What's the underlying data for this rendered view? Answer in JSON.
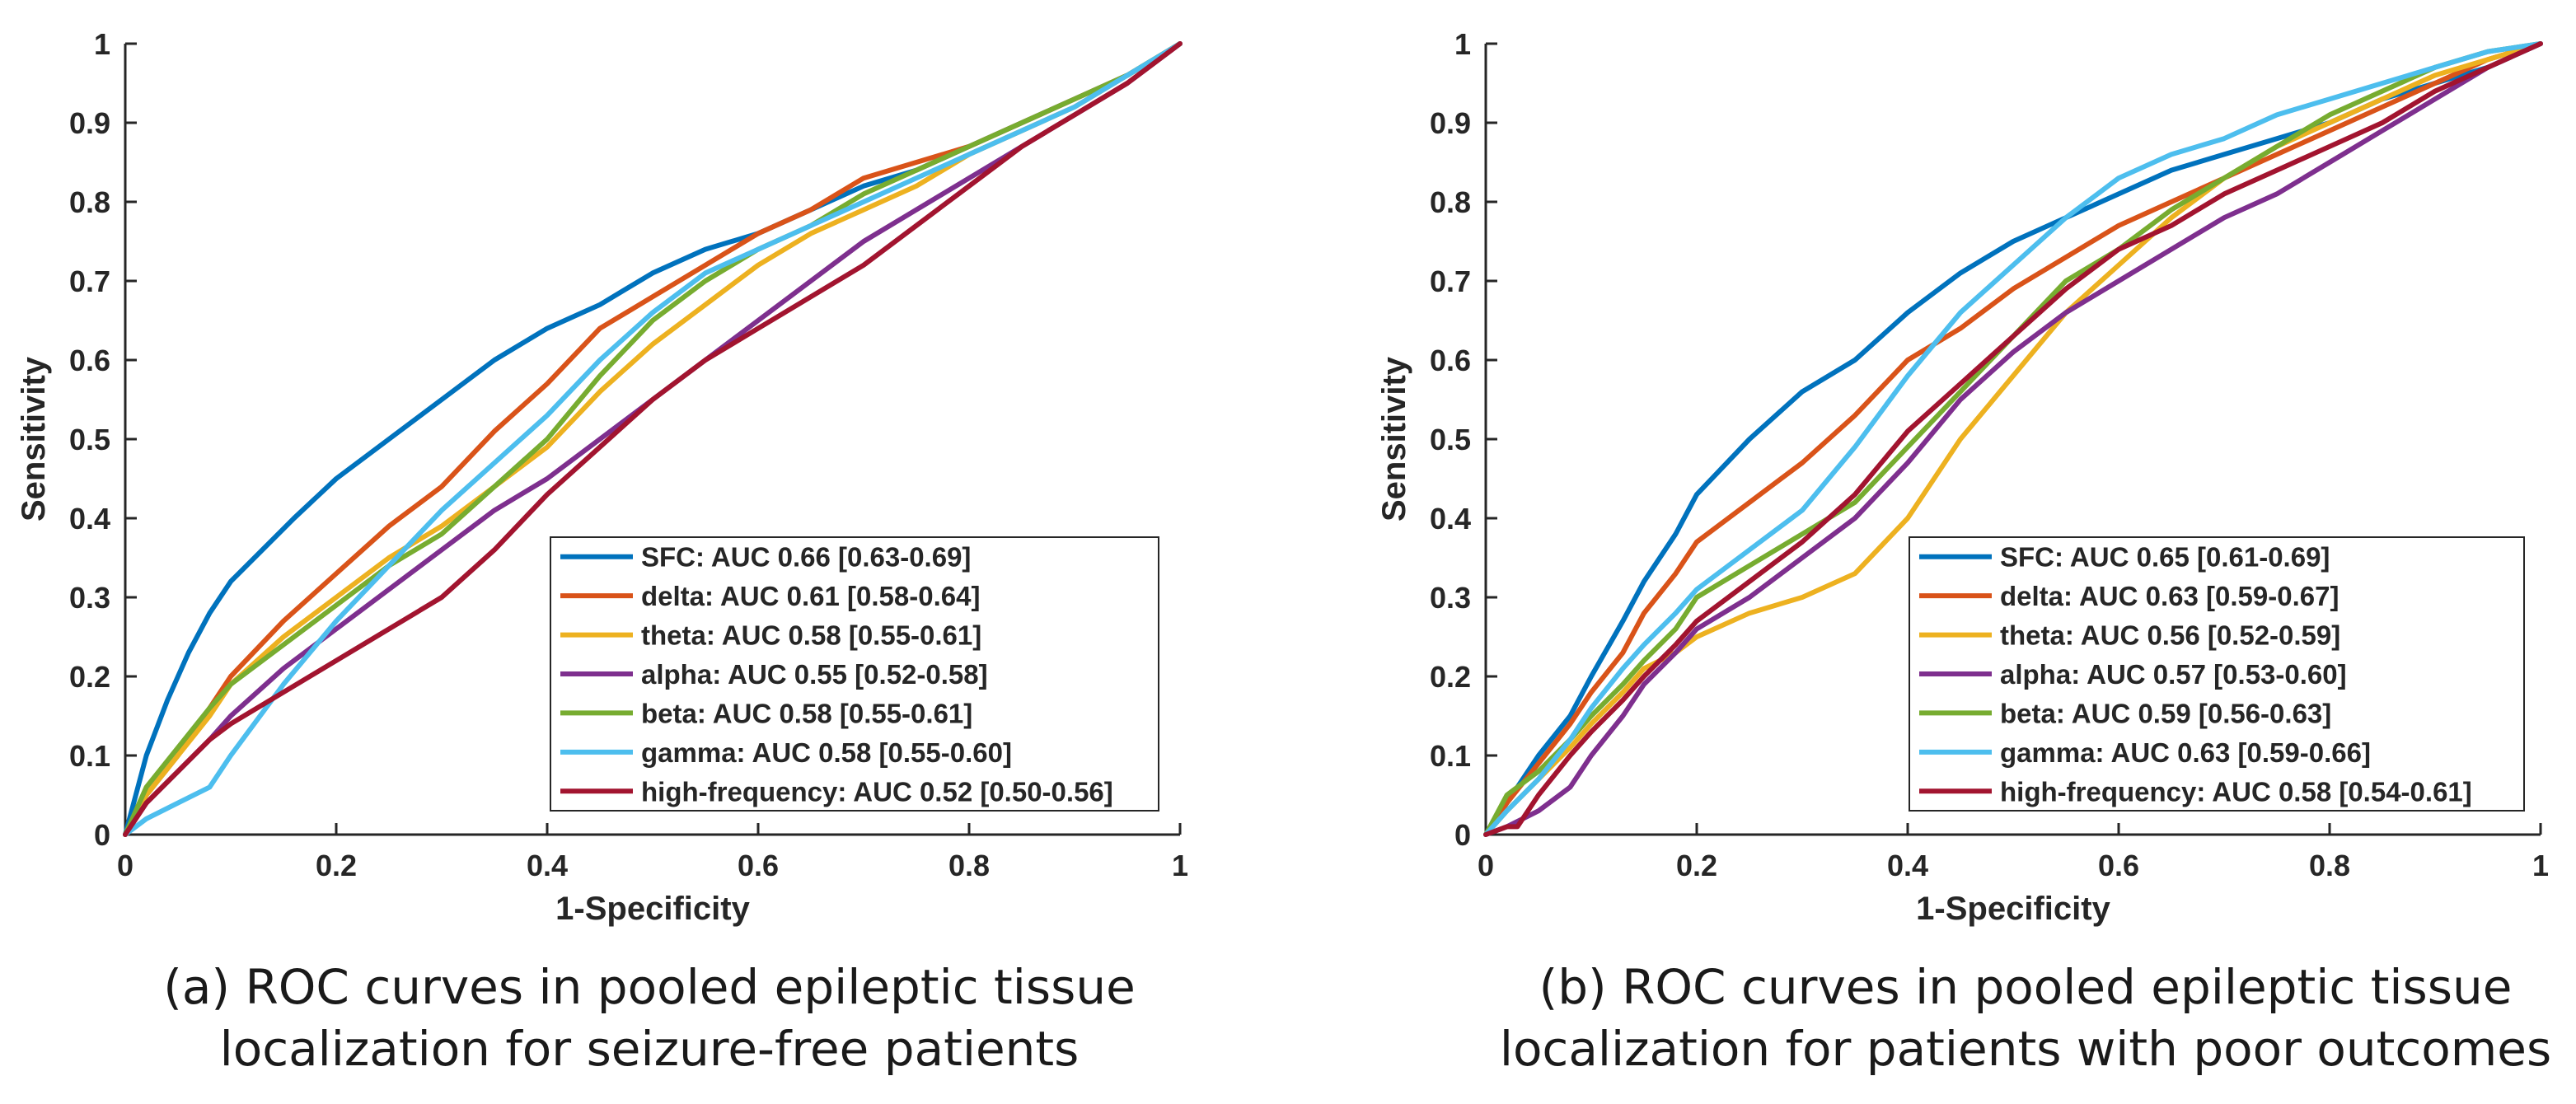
{
  "colors": {
    "SFC": "#0072BD",
    "delta": "#D95319",
    "theta": "#EDB120",
    "alpha": "#7E2F8E",
    "beta": "#77AC30",
    "gamma": "#4DBEEE",
    "high-frequency": "#A2142F"
  },
  "chart_data": [
    {
      "type": "line",
      "xlabel": "1-Specificity",
      "ylabel": "Sensitivity",
      "xlim": [
        0,
        1
      ],
      "ylim": [
        0,
        1
      ],
      "x_ticks": [
        "0",
        "0.2",
        "0.4",
        "0.6",
        "0.8",
        "1"
      ],
      "y_ticks": [
        "0",
        "0.1",
        "0.2",
        "0.3",
        "0.4",
        "0.5",
        "0.6",
        "0.7",
        "0.8",
        "0.9",
        "1"
      ],
      "caption": [
        "(a) ROC curves in pooled epileptic tissue",
        "localization for seizure-free patients"
      ],
      "legend_position": "bottom-right",
      "series": [
        {
          "name": "SFC",
          "legend": "SFC: AUC 0.66 [0.63-0.69]",
          "x": [
            0,
            0.01,
            0.02,
            0.04,
            0.06,
            0.08,
            0.1,
            0.13,
            0.16,
            0.2,
            0.25,
            0.3,
            0.35,
            0.4,
            0.45,
            0.5,
            0.55,
            0.6,
            0.65,
            0.7,
            0.75,
            0.8,
            0.85,
            0.9,
            0.95,
            1
          ],
          "y": [
            0,
            0.05,
            0.1,
            0.17,
            0.23,
            0.28,
            0.32,
            0.36,
            0.4,
            0.45,
            0.5,
            0.55,
            0.6,
            0.64,
            0.67,
            0.71,
            0.74,
            0.76,
            0.79,
            0.82,
            0.84,
            0.87,
            0.9,
            0.93,
            0.96,
            1
          ]
        },
        {
          "name": "delta",
          "legend": "delta: AUC 0.61 [0.58-0.64]",
          "x": [
            0,
            0.02,
            0.05,
            0.08,
            0.1,
            0.15,
            0.2,
            0.25,
            0.3,
            0.35,
            0.4,
            0.45,
            0.5,
            0.55,
            0.6,
            0.65,
            0.7,
            0.75,
            0.8,
            0.85,
            0.9,
            0.95,
            1
          ],
          "y": [
            0,
            0.05,
            0.1,
            0.16,
            0.2,
            0.27,
            0.33,
            0.39,
            0.44,
            0.51,
            0.57,
            0.64,
            0.68,
            0.72,
            0.76,
            0.79,
            0.83,
            0.85,
            0.87,
            0.9,
            0.93,
            0.96,
            1
          ]
        },
        {
          "name": "theta",
          "legend": "theta: AUC 0.58 [0.55-0.61]",
          "x": [
            0,
            0.02,
            0.05,
            0.08,
            0.1,
            0.15,
            0.2,
            0.25,
            0.3,
            0.35,
            0.4,
            0.45,
            0.5,
            0.55,
            0.6,
            0.65,
            0.7,
            0.75,
            0.8,
            0.85,
            0.9,
            0.95,
            1
          ],
          "y": [
            0,
            0.05,
            0.1,
            0.15,
            0.19,
            0.25,
            0.3,
            0.35,
            0.39,
            0.44,
            0.49,
            0.56,
            0.62,
            0.67,
            0.72,
            0.76,
            0.79,
            0.82,
            0.86,
            0.89,
            0.92,
            0.96,
            1
          ]
        },
        {
          "name": "alpha",
          "legend": "alpha: AUC 0.55 [0.52-0.58]",
          "x": [
            0,
            0.02,
            0.05,
            0.08,
            0.1,
            0.15,
            0.2,
            0.25,
            0.3,
            0.35,
            0.4,
            0.45,
            0.5,
            0.55,
            0.6,
            0.65,
            0.7,
            0.75,
            0.8,
            0.85,
            0.9,
            0.95,
            1
          ],
          "y": [
            0,
            0.04,
            0.08,
            0.12,
            0.15,
            0.21,
            0.26,
            0.31,
            0.36,
            0.41,
            0.45,
            0.5,
            0.55,
            0.6,
            0.65,
            0.7,
            0.75,
            0.79,
            0.83,
            0.87,
            0.91,
            0.95,
            1
          ]
        },
        {
          "name": "beta",
          "legend": "beta: AUC 0.58 [0.55-0.61]",
          "x": [
            0,
            0.02,
            0.05,
            0.08,
            0.1,
            0.15,
            0.2,
            0.25,
            0.3,
            0.35,
            0.4,
            0.45,
            0.5,
            0.55,
            0.6,
            0.65,
            0.7,
            0.75,
            0.8,
            0.85,
            0.9,
            0.95,
            1
          ],
          "y": [
            0,
            0.06,
            0.11,
            0.16,
            0.19,
            0.24,
            0.29,
            0.34,
            0.38,
            0.44,
            0.5,
            0.58,
            0.65,
            0.7,
            0.74,
            0.77,
            0.81,
            0.84,
            0.87,
            0.9,
            0.93,
            0.96,
            1
          ]
        },
        {
          "name": "gamma",
          "legend": "gamma: AUC 0.58 [0.55-0.60]",
          "x": [
            0,
            0.02,
            0.05,
            0.08,
            0.1,
            0.15,
            0.2,
            0.25,
            0.3,
            0.35,
            0.4,
            0.45,
            0.5,
            0.55,
            0.6,
            0.65,
            0.7,
            0.75,
            0.8,
            0.85,
            0.9,
            0.95,
            1
          ],
          "y": [
            0,
            0.02,
            0.04,
            0.06,
            0.1,
            0.19,
            0.27,
            0.34,
            0.41,
            0.47,
            0.53,
            0.6,
            0.66,
            0.71,
            0.74,
            0.77,
            0.8,
            0.83,
            0.86,
            0.89,
            0.92,
            0.96,
            1
          ]
        },
        {
          "name": "high-frequency",
          "legend": "high-frequency: AUC 0.52 [0.50-0.56]",
          "x": [
            0,
            0.02,
            0.05,
            0.08,
            0.1,
            0.15,
            0.2,
            0.25,
            0.3,
            0.35,
            0.4,
            0.45,
            0.5,
            0.55,
            0.6,
            0.65,
            0.7,
            0.75,
            0.8,
            0.85,
            0.9,
            0.95,
            1
          ],
          "y": [
            0,
            0.04,
            0.08,
            0.12,
            0.14,
            0.18,
            0.22,
            0.26,
            0.3,
            0.36,
            0.43,
            0.49,
            0.55,
            0.6,
            0.64,
            0.68,
            0.72,
            0.77,
            0.82,
            0.87,
            0.91,
            0.95,
            1
          ]
        }
      ]
    },
    {
      "type": "line",
      "xlabel": "1-Specificity",
      "ylabel": "Sensitivity",
      "xlim": [
        0,
        1
      ],
      "ylim": [
        0,
        1
      ],
      "x_ticks": [
        "0",
        "0.2",
        "0.4",
        "0.6",
        "0.8",
        "1"
      ],
      "y_ticks": [
        "0",
        "0.1",
        "0.2",
        "0.3",
        "0.4",
        "0.5",
        "0.6",
        "0.7",
        "0.8",
        "0.9",
        "1"
      ],
      "caption": [
        "(b) ROC curves in pooled epileptic tissue",
        "localization for patients with poor outcomes"
      ],
      "legend_position": "bottom-right",
      "series": [
        {
          "name": "SFC",
          "legend": "SFC: AUC 0.65 [0.61-0.69]",
          "x": [
            0,
            0.02,
            0.05,
            0.08,
            0.1,
            0.13,
            0.15,
            0.18,
            0.2,
            0.25,
            0.3,
            0.35,
            0.4,
            0.45,
            0.5,
            0.55,
            0.6,
            0.65,
            0.7,
            0.75,
            0.8,
            0.85,
            0.9,
            0.95,
            1
          ],
          "y": [
            0,
            0.04,
            0.1,
            0.15,
            0.2,
            0.27,
            0.32,
            0.38,
            0.43,
            0.5,
            0.56,
            0.6,
            0.66,
            0.71,
            0.75,
            0.78,
            0.81,
            0.84,
            0.86,
            0.88,
            0.9,
            0.93,
            0.95,
            0.97,
            1
          ]
        },
        {
          "name": "delta",
          "legend": "delta: AUC 0.63 [0.59-0.67]",
          "x": [
            0,
            0.02,
            0.05,
            0.08,
            0.1,
            0.13,
            0.15,
            0.18,
            0.2,
            0.25,
            0.3,
            0.35,
            0.4,
            0.45,
            0.5,
            0.55,
            0.6,
            0.65,
            0.7,
            0.75,
            0.8,
            0.85,
            0.9,
            0.95,
            1
          ],
          "y": [
            0,
            0.04,
            0.09,
            0.14,
            0.18,
            0.23,
            0.28,
            0.33,
            0.37,
            0.42,
            0.47,
            0.53,
            0.6,
            0.64,
            0.69,
            0.73,
            0.77,
            0.8,
            0.83,
            0.86,
            0.89,
            0.92,
            0.95,
            0.98,
            1
          ]
        },
        {
          "name": "theta",
          "legend": "theta: AUC 0.56 [0.52-0.59]",
          "x": [
            0,
            0.02,
            0.05,
            0.08,
            0.1,
            0.13,
            0.15,
            0.18,
            0.2,
            0.25,
            0.3,
            0.35,
            0.4,
            0.45,
            0.5,
            0.55,
            0.6,
            0.65,
            0.7,
            0.75,
            0.8,
            0.85,
            0.9,
            0.95,
            1
          ],
          "y": [
            0,
            0.03,
            0.07,
            0.11,
            0.14,
            0.18,
            0.21,
            0.23,
            0.25,
            0.28,
            0.3,
            0.33,
            0.4,
            0.5,
            0.58,
            0.66,
            0.72,
            0.78,
            0.83,
            0.87,
            0.9,
            0.93,
            0.96,
            0.98,
            1
          ]
        },
        {
          "name": "alpha",
          "legend": "alpha: AUC 0.57 [0.53-0.60]",
          "x": [
            0,
            0.02,
            0.05,
            0.08,
            0.1,
            0.13,
            0.15,
            0.18,
            0.2,
            0.25,
            0.3,
            0.35,
            0.4,
            0.45,
            0.5,
            0.55,
            0.6,
            0.65,
            0.7,
            0.75,
            0.8,
            0.85,
            0.9,
            0.95,
            1
          ],
          "y": [
            0,
            0.01,
            0.03,
            0.06,
            0.1,
            0.15,
            0.19,
            0.23,
            0.26,
            0.3,
            0.35,
            0.4,
            0.47,
            0.55,
            0.61,
            0.66,
            0.7,
            0.74,
            0.78,
            0.81,
            0.85,
            0.89,
            0.93,
            0.97,
            1
          ]
        },
        {
          "name": "beta",
          "legend": "beta: AUC 0.59 [0.56-0.63]",
          "x": [
            0,
            0.02,
            0.05,
            0.08,
            0.1,
            0.13,
            0.15,
            0.18,
            0.2,
            0.25,
            0.3,
            0.35,
            0.4,
            0.45,
            0.5,
            0.55,
            0.6,
            0.65,
            0.7,
            0.75,
            0.8,
            0.85,
            0.9,
            0.95,
            1
          ],
          "y": [
            0,
            0.05,
            0.08,
            0.12,
            0.15,
            0.19,
            0.22,
            0.26,
            0.3,
            0.34,
            0.38,
            0.42,
            0.49,
            0.56,
            0.63,
            0.7,
            0.74,
            0.79,
            0.83,
            0.87,
            0.91,
            0.94,
            0.97,
            0.99,
            1
          ]
        },
        {
          "name": "gamma",
          "legend": "gamma: AUC 0.63 [0.59-0.66]",
          "x": [
            0,
            0.02,
            0.05,
            0.08,
            0.1,
            0.13,
            0.15,
            0.18,
            0.2,
            0.25,
            0.3,
            0.35,
            0.4,
            0.45,
            0.5,
            0.55,
            0.6,
            0.65,
            0.7,
            0.75,
            0.8,
            0.85,
            0.9,
            0.95,
            1
          ],
          "y": [
            0,
            0.03,
            0.07,
            0.12,
            0.16,
            0.21,
            0.24,
            0.28,
            0.31,
            0.36,
            0.41,
            0.49,
            0.58,
            0.66,
            0.72,
            0.78,
            0.83,
            0.86,
            0.88,
            0.91,
            0.93,
            0.95,
            0.97,
            0.99,
            1
          ]
        },
        {
          "name": "high-frequency",
          "legend": "high-frequency: AUC 0.58 [0.54-0.61]",
          "x": [
            0,
            0.02,
            0.03,
            0.05,
            0.08,
            0.1,
            0.13,
            0.15,
            0.18,
            0.2,
            0.25,
            0.3,
            0.35,
            0.4,
            0.45,
            0.5,
            0.55,
            0.6,
            0.65,
            0.7,
            0.75,
            0.8,
            0.85,
            0.9,
            0.95,
            1
          ],
          "y": [
            0,
            0.01,
            0.01,
            0.05,
            0.1,
            0.13,
            0.17,
            0.2,
            0.24,
            0.27,
            0.32,
            0.37,
            0.43,
            0.51,
            0.57,
            0.63,
            0.69,
            0.74,
            0.77,
            0.81,
            0.84,
            0.87,
            0.9,
            0.94,
            0.97,
            1
          ]
        }
      ]
    }
  ]
}
